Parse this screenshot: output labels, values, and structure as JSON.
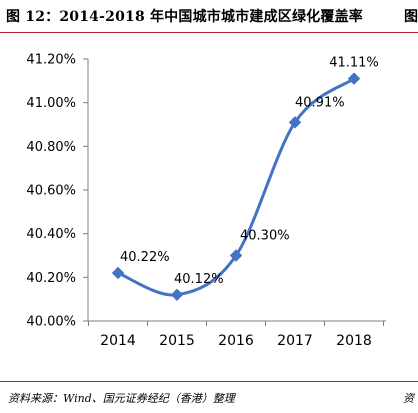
{
  "header": {
    "title": "图 12：2014-2018 年中国城市城市建成区绿化覆盖率",
    "right_fragment": "图"
  },
  "footer": {
    "source": "资料来源：Wind、国元证券经纪（香港）整理",
    "right_fragment": "资"
  },
  "colors": {
    "line": "#4472c4",
    "rule": "#b8292f",
    "axis": "#7f7f7f"
  },
  "chart_data": {
    "type": "line",
    "categories": [
      "2014",
      "2015",
      "2016",
      "2017",
      "2018"
    ],
    "series": [
      {
        "values": [
          40.22,
          40.12,
          40.3,
          40.91,
          41.11
        ],
        "labels": [
          "40.22%",
          "40.12%",
          "40.30%",
          "40.91%",
          "41.11%"
        ]
      }
    ],
    "yticks": [
      "40.00%",
      "40.20%",
      "40.40%",
      "40.60%",
      "40.80%",
      "41.00%",
      "41.20%"
    ],
    "ylim": [
      40.0,
      41.2
    ],
    "smooth": true,
    "markers": "diamond",
    "grid": false,
    "legend": "none"
  }
}
